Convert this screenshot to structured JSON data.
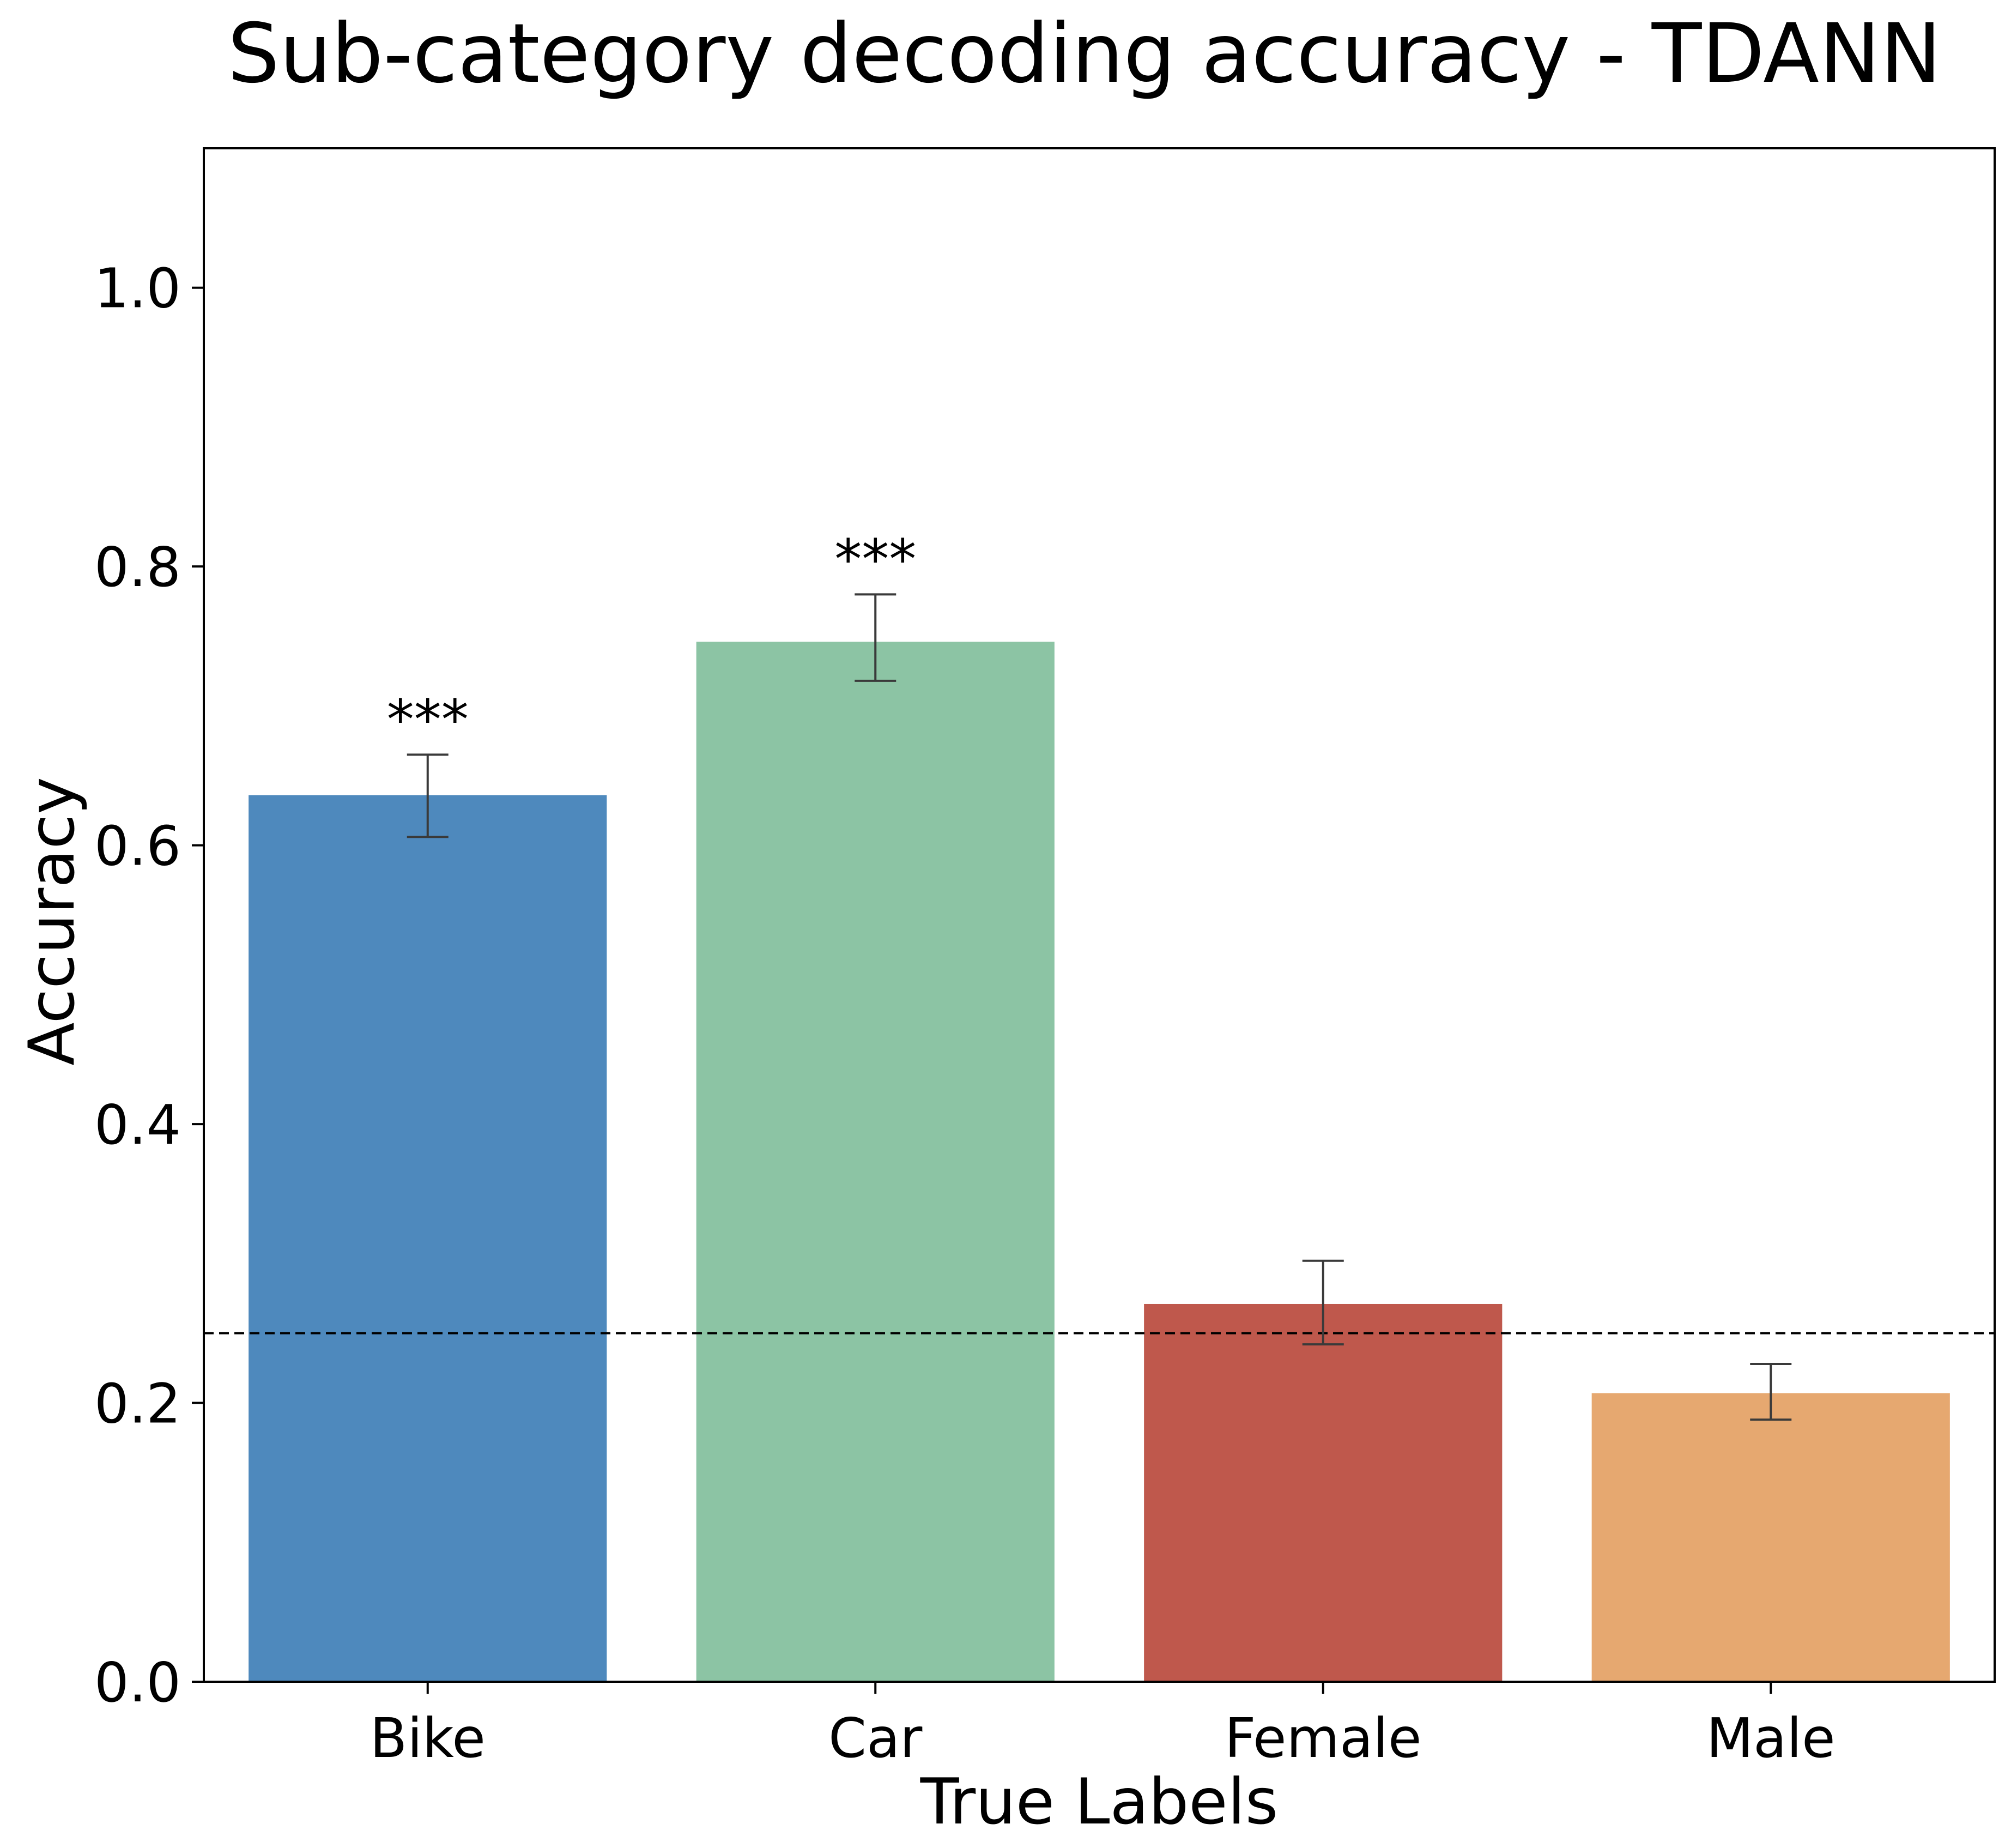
{
  "chart_data": {
    "type": "bar",
    "title": "Sub-category decoding accuracy - TDANN",
    "xlabel": "True Labels",
    "ylabel": "Accuracy",
    "ylim": [
      0,
      1.1
    ],
    "yticks": [
      0.0,
      0.2,
      0.4,
      0.6,
      0.8,
      1.0
    ],
    "ytick_labels": [
      "0.0",
      "0.2",
      "0.4",
      "0.6",
      "0.8",
      "1.0"
    ],
    "categories": [
      "Bike",
      "Car",
      "Female",
      "Male"
    ],
    "values": [
      0.636,
      0.746,
      0.271,
      0.207
    ],
    "error_low": [
      0.606,
      0.718,
      0.242,
      0.188
    ],
    "error_high": [
      0.665,
      0.78,
      0.302,
      0.228
    ],
    "significance": [
      "***",
      "***",
      "",
      ""
    ],
    "colors": [
      "#4e89bd",
      "#8cc4a4",
      "#bf584c",
      "#e6a870"
    ],
    "chance_level": 0.25,
    "grid": false
  }
}
